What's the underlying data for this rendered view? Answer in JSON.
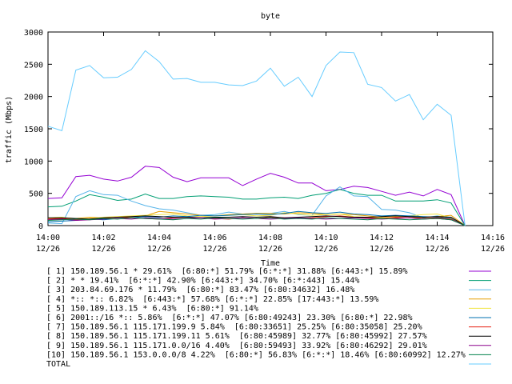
{
  "chart_data": {
    "type": "line",
    "title": "byte",
    "xlabel": "Time",
    "ylabel": "traffic (Mbps)",
    "ylim": [
      0,
      3000
    ],
    "xlim": [
      0,
      16
    ],
    "grid": false,
    "legend_placement": "bottom",
    "yticks": [
      "0",
      "500",
      "1000",
      "1500",
      "2000",
      "2500",
      "3000"
    ],
    "xticks": [
      {
        "time": "14:00",
        "date": "12/26"
      },
      {
        "time": "14:02",
        "date": "12/26"
      },
      {
        "time": "14:04",
        "date": "12/26"
      },
      {
        "time": "14:06",
        "date": "12/26"
      },
      {
        "time": "14:08",
        "date": "12/26"
      },
      {
        "time": "14:10",
        "date": "12/26"
      },
      {
        "time": "14:12",
        "date": "12/26"
      },
      {
        "time": "14:14",
        "date": "12/26"
      },
      {
        "time": "14:16",
        "date": "12/26"
      }
    ],
    "x": [
      0,
      0.5,
      1,
      1.5,
      2,
      2.5,
      3,
      3.5,
      4,
      4.5,
      5,
      5.5,
      6,
      6.5,
      7,
      7.5,
      8,
      8.5,
      9,
      9.5,
      10,
      10.5,
      11,
      11.5,
      12,
      12.5,
      13,
      13.5,
      14,
      14.5,
      15
    ],
    "series": [
      {
        "name": "[ 1] 150.189.56.1 * 29.61%  [6:80:*] 51.79% [6:*:*] 31.88% [6:443:*] 15.89%",
        "color": "#9400d3",
        "values": [
          420,
          430,
          760,
          780,
          720,
          690,
          750,
          920,
          900,
          750,
          680,
          740,
          740,
          740,
          620,
          720,
          810,
          750,
          660,
          660,
          540,
          560,
          610,
          590,
          530,
          470,
          520,
          460,
          560,
          480,
          0
        ]
      },
      {
        "name": "[ 2] * * 19.41%  [6:*:*] 42.90% [6:443:*] 34.70% [6:*:443] 15.44%",
        "color": "#009e73",
        "values": [
          290,
          300,
          380,
          480,
          440,
          390,
          410,
          490,
          420,
          420,
          450,
          460,
          450,
          440,
          410,
          410,
          430,
          440,
          420,
          470,
          500,
          560,
          500,
          470,
          470,
          380,
          380,
          380,
          400,
          350,
          0
        ]
      },
      {
        "name": "[ 3] 203.84.69.176 * 11.79%  [6:80:*] 83.47% [6:80:34632] 16.48%",
        "color": "#56b4e9",
        "values": [
          40,
          30,
          450,
          540,
          480,
          470,
          380,
          310,
          260,
          240,
          200,
          160,
          170,
          210,
          180,
          190,
          190,
          220,
          170,
          160,
          460,
          600,
          460,
          450,
          250,
          240,
          200,
          120,
          150,
          120,
          0
        ]
      },
      {
        "name": "[ 4] *:: *:: 6.82%  [6:443:*] 57.68% [6:*:*] 22.85% [17:443:*] 13.59%",
        "color": "#e69f00",
        "values": [
          100,
          120,
          110,
          130,
          120,
          130,
          140,
          150,
          220,
          200,
          180,
          160,
          150,
          170,
          180,
          190,
          190,
          180,
          200,
          190,
          170,
          180,
          170,
          150,
          130,
          120,
          120,
          130,
          140,
          160,
          0
        ]
      },
      {
        "name": "[ 5] 150.189.113.15 * 6.43%  [6:80:*] 91.14%",
        "color": "#f0e442",
        "values": [
          120,
          130,
          100,
          110,
          130,
          140,
          150,
          160,
          170,
          180,
          150,
          140,
          150,
          160,
          170,
          150,
          160,
          200,
          180,
          160,
          170,
          180,
          140,
          130,
          120,
          140,
          150,
          170,
          180,
          120,
          0
        ]
      },
      {
        "name": "[ 6] 2001::/16 *:: 5.86%  [6:*:*] 47.07% [6:80:49243] 23.30% [6:80:*] 22.98%",
        "color": "#0072b2",
        "values": [
          60,
          70,
          80,
          100,
          90,
          110,
          120,
          140,
          130,
          150,
          140,
          160,
          150,
          160,
          170,
          180,
          170,
          190,
          220,
          200,
          190,
          210,
          180,
          170,
          150,
          160,
          150,
          140,
          130,
          110,
          0
        ]
      },
      {
        "name": "[ 7] 150.189.56.1 115.171.199.9 5.84%  [6:80:33651] 25.25% [6:80:35058] 25.20%",
        "color": "#e51e10",
        "values": [
          100,
          110,
          90,
          100,
          110,
          130,
          120,
          110,
          100,
          120,
          130,
          120,
          110,
          100,
          120,
          110,
          130,
          120,
          110,
          120,
          140,
          150,
          130,
          120,
          110,
          130,
          120,
          110,
          120,
          100,
          0
        ]
      },
      {
        "name": "[ 8] 150.189.56.1 115.171.199.11 5.61%  [6:80:45989] 32.77% [6:80:45992] 27.57%",
        "color": "#000000",
        "values": [
          120,
          120,
          110,
          100,
          120,
          130,
          140,
          150,
          140,
          130,
          130,
          120,
          130,
          130,
          140,
          130,
          140,
          120,
          130,
          140,
          150,
          140,
          130,
          130,
          140,
          150,
          140,
          130,
          140,
          130,
          0
        ]
      },
      {
        "name": "[ 9] 150.189.56.1 115.171.0.0/16 4.40%  [6:80:59493] 33.92% [6:80:46292] 29.01%",
        "color": "#8b008b",
        "values": [
          90,
          100,
          80,
          90,
          100,
          110,
          100,
          120,
          110,
          100,
          110,
          120,
          100,
          110,
          120,
          110,
          100,
          110,
          120,
          110,
          100,
          110,
          120,
          110,
          100,
          110,
          120,
          100,
          110,
          90,
          0
        ]
      },
      {
        "name": "[10] 150.189.56.1 153.0.0.0/8 4.22%  [6:80:*] 56.83% [6:*:*] 18.46% [6:80:60992] 12.27%",
        "color": "#00804b",
        "values": [
          80,
          90,
          100,
          90,
          110,
          100,
          120,
          110,
          100,
          90,
          110,
          100,
          120,
          110,
          100,
          110,
          120,
          100,
          110,
          100,
          120,
          110,
          100,
          90,
          110,
          100,
          90,
          100,
          110,
          90,
          0
        ]
      },
      {
        "name": "TOTAL",
        "color": "#66ccff",
        "values": [
          1540,
          1470,
          2410,
          2480,
          2290,
          2300,
          2420,
          2710,
          2540,
          2270,
          2280,
          2220,
          2220,
          2180,
          2170,
          2240,
          2440,
          2160,
          2300,
          2000,
          2480,
          2690,
          2680,
          2190,
          2140,
          1930,
          2030,
          1640,
          1880,
          1710,
          0
        ]
      }
    ]
  }
}
